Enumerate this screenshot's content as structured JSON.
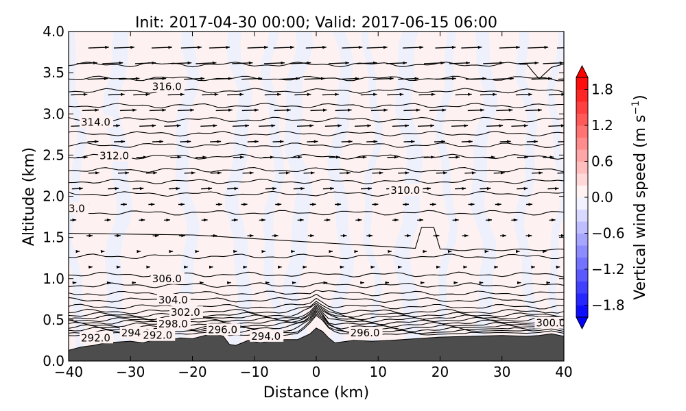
{
  "chart_data": {
    "type": "contour",
    "title": "Init: 2017-04-30 00:00; Valid: 2017-06-15 06:00",
    "xlabel": "Distance (km)",
    "ylabel": "Altitude (km)",
    "xlim": [
      -40,
      40
    ],
    "ylim": [
      0.0,
      4.0
    ],
    "xticks": [
      "−40",
      "−30",
      "−20",
      "−10",
      "0",
      "10",
      "20",
      "30",
      "40"
    ],
    "yticks": [
      "0.0",
      "0.5",
      "1.0",
      "1.5",
      "2.0",
      "2.5",
      "3.0",
      "3.5",
      "4.0"
    ],
    "colorbar": {
      "label": "Vertical wind speed (m s",
      "label_sup": "−1",
      "label_end": ")",
      "ticks": [
        "1.8",
        "1.2",
        "0.6",
        "0.0",
        "−0.6",
        "−1.2",
        "−1.8"
      ],
      "range": [
        -2.0,
        2.0
      ],
      "colormap": "bwr"
    },
    "contour_labels": [
      {
        "text": "316.0",
        "x": -26.5,
        "y": 3.33
      },
      {
        "text": "314.0",
        "x": -38.0,
        "y": 2.9
      },
      {
        "text": "312.0",
        "x": -35.0,
        "y": 2.49
      },
      {
        "text": "310.0",
        "x": 12.0,
        "y": 2.07
      },
      {
        "text": "3.0",
        "x": -40.0,
        "y": 1.85
      },
      {
        "text": "306.0",
        "x": -26.5,
        "y": 1.0
      },
      {
        "text": "304.0",
        "x": -25.5,
        "y": 0.74
      },
      {
        "text": "302.0",
        "x": -23.5,
        "y": 0.59
      },
      {
        "text": "300.0",
        "x": 35.5,
        "y": 0.46
      },
      {
        "text": "298.0",
        "x": -25.5,
        "y": 0.45
      },
      {
        "text": "296.0",
        "x": -17.5,
        "y": 0.38
      },
      {
        "text": "296.0",
        "x": 5.5,
        "y": 0.34
      },
      {
        "text": "294.0",
        "x": -31.5,
        "y": 0.34
      },
      {
        "text": "292.0",
        "x": -28.0,
        "y": 0.31
      },
      {
        "text": "294.0",
        "x": -10.5,
        "y": 0.3
      },
      {
        "text": "292.0",
        "x": -38.0,
        "y": 0.28
      }
    ],
    "terrain_color": "#4d4d4d"
  }
}
